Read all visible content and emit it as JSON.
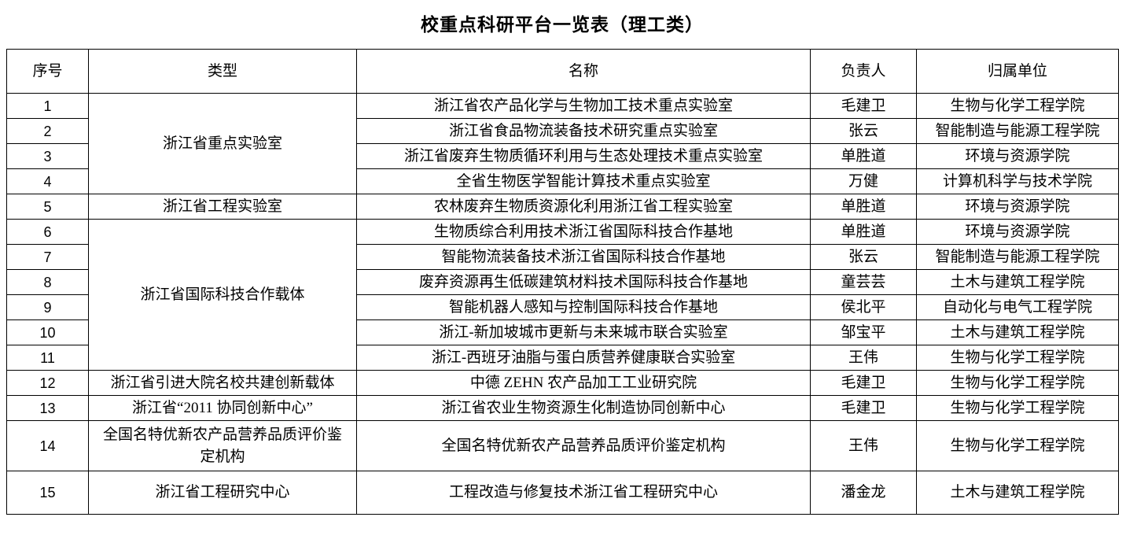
{
  "title": "校重点科研平台一览表（理工类）",
  "columns": [
    "序号",
    "类型",
    "名称",
    "负责人",
    "归属单位"
  ],
  "types": {
    "t1": "浙江省重点实验室",
    "t2": "浙江省工程实验室",
    "t3": "浙江省国际科技合作载体",
    "t4": "浙江省引进大院名校共建创新载体",
    "t5": "浙江省“2011 协同创新中心”",
    "t6": "全国名特优新农产品营养品质评价鉴定机构",
    "t7": "浙江省工程研究中心"
  },
  "rows": [
    {
      "no": "1",
      "name": "浙江省农产品化学与生物加工技术重点实验室",
      "leader": "毛建卫",
      "unit": "生物与化学工程学院"
    },
    {
      "no": "2",
      "name": "浙江省食品物流装备技术研究重点实验室",
      "leader": "张云",
      "unit": "智能制造与能源工程学院"
    },
    {
      "no": "3",
      "name": "浙江省废弃生物质循环利用与生态处理技术重点实验室",
      "leader": "单胜道",
      "unit": "环境与资源学院"
    },
    {
      "no": "4",
      "name": "全省生物医学智能计算技术重点实验室",
      "leader": "万健",
      "unit": "计算机科学与技术学院"
    },
    {
      "no": "5",
      "name": "农林废弃生物质资源化利用浙江省工程实验室",
      "leader": "单胜道",
      "unit": "环境与资源学院"
    },
    {
      "no": "6",
      "name": "生物质综合利用技术浙江省国际科技合作基地",
      "leader": "单胜道",
      "unit": "环境与资源学院"
    },
    {
      "no": "7",
      "name": "智能物流装备技术浙江省国际科技合作基地",
      "leader": "张云",
      "unit": "智能制造与能源工程学院"
    },
    {
      "no": "8",
      "name": "废弃资源再生低碳建筑材料技术国际科技合作基地",
      "leader": "童芸芸",
      "unit": "土木与建筑工程学院"
    },
    {
      "no": "9",
      "name": "智能机器人感知与控制国际科技合作基地",
      "leader": "侯北平",
      "unit": "自动化与电气工程学院"
    },
    {
      "no": "10",
      "name": "浙江-新加坡城市更新与未来城市联合实验室",
      "leader": "邹宝平",
      "unit": "土木与建筑工程学院"
    },
    {
      "no": "11",
      "name": "浙江-西班牙油脂与蛋白质营养健康联合实验室",
      "leader": "王伟",
      "unit": "生物与化学工程学院"
    },
    {
      "no": "12",
      "name": "中德 ZEHN 农产品加工工业研究院",
      "leader": "毛建卫",
      "unit": "生物与化学工程学院"
    },
    {
      "no": "13",
      "name": "浙江省农业生物资源生化制造协同创新中心",
      "leader": "毛建卫",
      "unit": "生物与化学工程学院"
    },
    {
      "no": "14",
      "name": "全国名特优新农产品营养品质评价鉴定机构",
      "leader": "王伟",
      "unit": "生物与化学工程学院"
    },
    {
      "no": "15",
      "name": "工程改造与修复技术浙江省工程研究中心",
      "leader": "潘金龙",
      "unit": "土木与建筑工程学院"
    }
  ]
}
